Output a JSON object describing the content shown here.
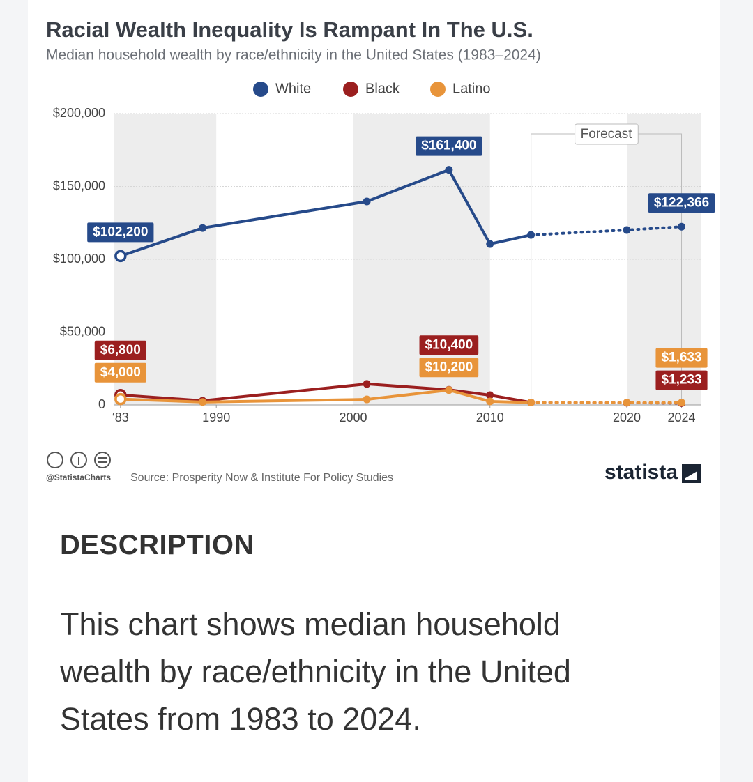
{
  "chart_data": {
    "type": "line",
    "title": "Racial Wealth Inequality Is Rampant In The U.S.",
    "subtitle": "Median household wealth by race/ethnicity in the United States (1983–2024)",
    "x": [
      1983,
      1989,
      2001,
      2007,
      2010,
      2013,
      2020,
      2024
    ],
    "series": [
      {
        "name": "White",
        "color": "#264a8a",
        "values": [
          102200,
          121500,
          139700,
          161400,
          110500,
          116700,
          120100,
          122366
        ],
        "value_labels": [
          "$102,200",
          null,
          null,
          "$161,400",
          null,
          null,
          null,
          "$122,366"
        ]
      },
      {
        "name": "Black",
        "color": "#9b1f1f",
        "values": [
          6800,
          2900,
          14400,
          10400,
          6700,
          1700,
          1500,
          1233
        ],
        "value_labels": [
          "$6,800",
          null,
          null,
          "$10,400",
          null,
          null,
          null,
          "$1,233"
        ]
      },
      {
        "name": "Latino",
        "color": "#e8943a",
        "values": [
          4000,
          2000,
          3800,
          10200,
          2400,
          1700,
          1600,
          1633
        ],
        "value_labels": [
          "$4,000",
          null,
          null,
          "$10,200",
          null,
          null,
          null,
          "$1,633"
        ]
      }
    ],
    "forecast_from": 2013,
    "forecast_label": "Forecast",
    "xlim": [
      1982.5,
      2025.4
    ],
    "xticks": [
      {
        "value": 1983,
        "label": "‘83"
      },
      1990,
      2000,
      2010,
      2020,
      2024
    ],
    "ylim": [
      0,
      200000
    ],
    "yticks": [
      0,
      {
        "value": 50000,
        "label": "$50,000"
      },
      {
        "value": 100000,
        "label": "$100,000"
      },
      {
        "value": 150000,
        "label": "$150,000"
      },
      {
        "value": 200000,
        "label": "$200,000"
      }
    ],
    "grid": true,
    "legend": "top"
  },
  "footer": {
    "handle": "@StatistaCharts",
    "source": "Source: Prosperity Now & Institute For Policy Studies",
    "brand": "statista"
  },
  "description": {
    "heading": "DESCRIPTION",
    "text": "This chart shows median household wealth by race/ethnicity in the United States from 1983 to 2024."
  }
}
